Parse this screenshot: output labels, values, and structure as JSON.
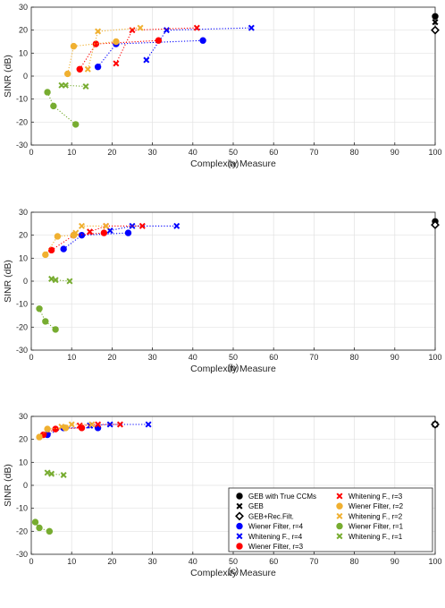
{
  "chart_data": [
    {
      "panel_label": "(a)",
      "type": "scatter",
      "xlabel": "Complexity Measure",
      "ylabel": "SINR (dB)",
      "xlim": [
        0,
        100
      ],
      "ylim": [
        -30,
        30
      ],
      "xticks": [
        0,
        10,
        20,
        30,
        40,
        50,
        60,
        70,
        80,
        90,
        100
      ],
      "yticks": [
        -30,
        -20,
        -10,
        0,
        10,
        20,
        30
      ],
      "grid": true,
      "series": [
        {
          "name": "GEB with True CCMs",
          "color": "#000000",
          "marker": "circle",
          "line": false,
          "points": [
            [
              100,
              26
            ]
          ]
        },
        {
          "name": "GEB",
          "color": "#000000",
          "marker": "x",
          "line": false,
          "points": [
            [
              100,
              23.5
            ]
          ]
        },
        {
          "name": "GEB+Rec.Filt.",
          "color": "#000000",
          "marker": "diamond",
          "line": false,
          "points": [
            [
              100,
              20
            ]
          ]
        },
        {
          "name": "Wiener Filter, r=4",
          "color": "#0000ff",
          "marker": "circle",
          "line": true,
          "points": [
            [
              16.5,
              4
            ],
            [
              21,
              14
            ],
            [
              42.5,
              15.5
            ]
          ]
        },
        {
          "name": "Whitening F., r=4",
          "color": "#0000ff",
          "marker": "x",
          "line": true,
          "points": [
            [
              28.5,
              7
            ],
            [
              33.5,
              20
            ],
            [
              54.5,
              21
            ]
          ]
        },
        {
          "name": "Wiener Filter, r=3",
          "color": "#ff0000",
          "marker": "circle",
          "line": true,
          "points": [
            [
              12,
              3
            ],
            [
              16,
              14
            ],
            [
              31.5,
              15.5
            ]
          ]
        },
        {
          "name": "Whitening F., r=3",
          "color": "#ff0000",
          "marker": "x",
          "line": true,
          "points": [
            [
              21,
              5.5
            ],
            [
              25,
              20
            ],
            [
              41,
              21
            ]
          ]
        },
        {
          "name": "Wiener Filter, r=2",
          "color": "#f0b030",
          "marker": "circle",
          "line": true,
          "points": [
            [
              9,
              1
            ],
            [
              10.5,
              13
            ],
            [
              21,
              15
            ]
          ]
        },
        {
          "name": "Whitening F., r=2",
          "color": "#f0b030",
          "marker": "x",
          "line": true,
          "points": [
            [
              14,
              3
            ],
            [
              16.5,
              19.5
            ],
            [
              27,
              21
            ]
          ]
        },
        {
          "name": "Wiener Filter, r=1",
          "color": "#77ac30",
          "marker": "circle",
          "line": true,
          "points": [
            [
              4,
              -7
            ],
            [
              5.5,
              -13
            ],
            [
              11,
              -21
            ]
          ]
        },
        {
          "name": "Whitening F., r=1",
          "color": "#77ac30",
          "marker": "x",
          "line": true,
          "points": [
            [
              7.5,
              -4
            ],
            [
              8.5,
              -4
            ],
            [
              13.5,
              -4.5
            ]
          ]
        }
      ]
    },
    {
      "panel_label": "(b)",
      "type": "scatter",
      "xlabel": "Complexity Measure",
      "ylabel": "SINR (dB)",
      "xlim": [
        0,
        100
      ],
      "ylim": [
        -30,
        30
      ],
      "xticks": [
        0,
        10,
        20,
        30,
        40,
        50,
        60,
        70,
        80,
        90,
        100
      ],
      "yticks": [
        -30,
        -20,
        -10,
        0,
        10,
        20,
        30
      ],
      "grid": true,
      "series": [
        {
          "name": "GEB with True CCMs",
          "color": "#000000",
          "marker": "circle",
          "line": false,
          "points": [
            [
              100,
              26
            ]
          ]
        },
        {
          "name": "GEB",
          "color": "#000000",
          "marker": "x",
          "line": false,
          "points": [
            [
              100,
              25
            ]
          ]
        },
        {
          "name": "GEB+Rec.Filt.",
          "color": "#000000",
          "marker": "diamond",
          "line": false,
          "points": [
            [
              100,
              24.5
            ]
          ]
        },
        {
          "name": "Wiener Filter, r=4",
          "color": "#0000ff",
          "marker": "circle",
          "line": true,
          "points": [
            [
              8,
              14
            ],
            [
              12.5,
              20
            ],
            [
              24,
              21
            ]
          ]
        },
        {
          "name": "Whitening F., r=4",
          "color": "#0000ff",
          "marker": "x",
          "line": true,
          "points": [
            [
              19.5,
              22
            ],
            [
              25,
              24
            ],
            [
              36,
              24
            ]
          ]
        },
        {
          "name": "Wiener Filter, r=3",
          "color": "#ff0000",
          "marker": "circle",
          "line": true,
          "points": [
            [
              5,
              13.5
            ],
            [
              10.5,
              20
            ],
            [
              18,
              21
            ]
          ]
        },
        {
          "name": "Whitening F., r=3",
          "color": "#ff0000",
          "marker": "x",
          "line": true,
          "points": [
            [
              14.5,
              21.5
            ],
            [
              18.5,
              24
            ],
            [
              27.5,
              24
            ]
          ]
        },
        {
          "name": "Wiener Filter, r=2",
          "color": "#f0b030",
          "marker": "circle",
          "line": true,
          "points": [
            [
              3.5,
              11.5
            ],
            [
              6.5,
              19.5
            ],
            [
              10.5,
              20
            ]
          ]
        },
        {
          "name": "Whitening F., r=2",
          "color": "#f0b030",
          "marker": "x",
          "line": true,
          "points": [
            [
              11,
              21
            ],
            [
              12.5,
              24
            ],
            [
              18.5,
              24
            ]
          ]
        },
        {
          "name": "Wiener Filter, r=1",
          "color": "#77ac30",
          "marker": "circle",
          "line": true,
          "points": [
            [
              2,
              -12
            ],
            [
              3.5,
              -17.5
            ],
            [
              6,
              -21
            ]
          ]
        },
        {
          "name": "Whitening F., r=1",
          "color": "#77ac30",
          "marker": "x",
          "line": true,
          "points": [
            [
              5,
              1
            ],
            [
              6,
              0.5
            ],
            [
              9.5,
              0
            ]
          ]
        }
      ]
    },
    {
      "panel_label": "(c)",
      "type": "scatter",
      "xlabel": "Complexity Measure",
      "ylabel": "SINR (dB)",
      "xlim": [
        0,
        100
      ],
      "ylim": [
        -30,
        30
      ],
      "xticks": [
        0,
        10,
        20,
        30,
        40,
        50,
        60,
        70,
        80,
        90,
        100
      ],
      "yticks": [
        -30,
        -20,
        -10,
        0,
        10,
        20,
        30
      ],
      "grid": true,
      "legend_position": "bottom-right",
      "series": [
        {
          "name": "GEB with True CCMs",
          "color": "#000000",
          "marker": "circle",
          "line": false,
          "points": [
            [
              100,
              26.5
            ]
          ]
        },
        {
          "name": "GEB",
          "color": "#000000",
          "marker": "x",
          "line": false,
          "points": [
            [
              100,
              26.5
            ]
          ]
        },
        {
          "name": "GEB+Rec.Filt.",
          "color": "#000000",
          "marker": "diamond",
          "line": false,
          "points": [
            [
              100,
              26.5
            ]
          ]
        },
        {
          "name": "Wiener Filter, r=4",
          "color": "#0000ff",
          "marker": "circle",
          "line": true,
          "points": [
            [
              4,
              22
            ],
            [
              8,
              25
            ],
            [
              16.5,
              25
            ]
          ]
        },
        {
          "name": "Whitening F., r=4",
          "color": "#0000ff",
          "marker": "x",
          "line": true,
          "points": [
            [
              14.5,
              26
            ],
            [
              19.5,
              26.5
            ],
            [
              29,
              26.5
            ]
          ]
        },
        {
          "name": "Wiener Filter, r=3",
          "color": "#ff0000",
          "marker": "circle",
          "line": true,
          "points": [
            [
              3,
              22
            ],
            [
              6,
              24.5
            ],
            [
              12.5,
              25
            ]
          ]
        },
        {
          "name": "Whitening F., r=3",
          "color": "#ff0000",
          "marker": "x",
          "line": true,
          "points": [
            [
              12,
              26
            ],
            [
              16.5,
              26.5
            ],
            [
              22,
              26.5
            ]
          ]
        },
        {
          "name": "Wiener Filter, r=2",
          "color": "#f0b030",
          "marker": "circle",
          "line": true,
          "points": [
            [
              2,
              21
            ],
            [
              4,
              24.5
            ],
            [
              8.5,
              25
            ]
          ]
        },
        {
          "name": "Whitening F., r=2",
          "color": "#f0b030",
          "marker": "x",
          "line": true,
          "points": [
            [
              7.5,
              25.5
            ],
            [
              10,
              26.5
            ],
            [
              15,
              26.5
            ]
          ]
        },
        {
          "name": "Wiener Filter, r=1",
          "color": "#77ac30",
          "marker": "circle",
          "line": true,
          "points": [
            [
              1,
              -16
            ],
            [
              2,
              -18.5
            ],
            [
              4.5,
              -20
            ]
          ]
        },
        {
          "name": "Whitening F., r=1",
          "color": "#77ac30",
          "marker": "x",
          "line": true,
          "points": [
            [
              4,
              5.5
            ],
            [
              5,
              5
            ],
            [
              8,
              4.5
            ]
          ]
        }
      ]
    }
  ]
}
